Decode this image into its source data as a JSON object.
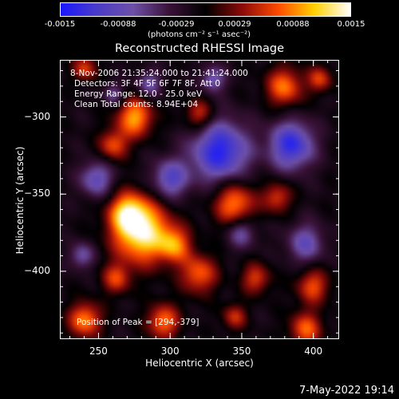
{
  "colorbar": {
    "ticks": [
      "-0.0015",
      "-0.00088",
      "-0.00029",
      "0.00029",
      "0.00088",
      "0.0015"
    ],
    "unit": "(photons cm⁻² s⁻¹ asec⁻²)",
    "colors": [
      "#1a18ff",
      "#4a3cc8",
      "#6e50a8",
      "#3a1238",
      "#000000",
      "#8a0a0a",
      "#ff4a00",
      "#ffd000",
      "#ffffff"
    ]
  },
  "title": "Reconstructed RHESSI Image",
  "info": {
    "time_range": "8-Nov-2006 21:35:24.000 to 21:41:24.000",
    "detectors": "Detectors: 3F 4F 5F 6F 7F 8F, Att 0",
    "energy": "Energy Range: 12.0 - 25.0 keV",
    "clean": "Clean     Total counts: 8.94E+04",
    "peak": "Position of Peak = [294,-379]"
  },
  "footer": "7-May-2022 19:14",
  "chart_data": {
    "type": "heatmap",
    "title": "Reconstructed RHESSI Image",
    "xlabel": "Heliocentric X (arcsec)",
    "ylabel": "Heliocentric Y (arcsec)",
    "xlim": [
      223,
      418
    ],
    "ylim": [
      -444,
      -263
    ],
    "x_ticks": [
      250,
      300,
      350,
      400
    ],
    "y_ticks": [
      -300,
      -350,
      -400
    ],
    "x_tick_labels": [
      "250",
      "300",
      "350",
      "400"
    ],
    "y_tick_labels": [
      "−300",
      "−350",
      "−400"
    ],
    "value_range": [
      -0.0015,
      0.0015
    ],
    "peak_position": [
      294,
      -379
    ],
    "grid": false,
    "sources": [
      {
        "x": 280,
        "y": -375,
        "s": 14,
        "a": 1.0
      },
      {
        "x": 270,
        "y": -362,
        "s": 9,
        "a": 0.7
      },
      {
        "x": 303,
        "y": -383,
        "s": 8,
        "a": 0.6
      },
      {
        "x": 262,
        "y": -405,
        "s": 7,
        "a": 0.5
      },
      {
        "x": 275,
        "y": -300,
        "s": 9,
        "a": 0.75
      },
      {
        "x": 260,
        "y": -318,
        "s": 7,
        "a": 0.55
      },
      {
        "x": 320,
        "y": -298,
        "s": 7,
        "a": 0.5
      },
      {
        "x": 380,
        "y": -280,
        "s": 9,
        "a": 0.65
      },
      {
        "x": 405,
        "y": -275,
        "s": 6,
        "a": 0.5
      },
      {
        "x": 345,
        "y": -356,
        "s": 10,
        "a": 0.7
      },
      {
        "x": 375,
        "y": -352,
        "s": 7,
        "a": 0.5
      },
      {
        "x": 320,
        "y": -402,
        "s": 9,
        "a": 0.6
      },
      {
        "x": 360,
        "y": -405,
        "s": 7,
        "a": 0.5
      },
      {
        "x": 400,
        "y": -410,
        "s": 8,
        "a": 0.55
      },
      {
        "x": 240,
        "y": -432,
        "s": 8,
        "a": 0.7
      },
      {
        "x": 295,
        "y": -433,
        "s": 8,
        "a": 0.65
      },
      {
        "x": 395,
        "y": -438,
        "s": 8,
        "a": 0.6
      },
      {
        "x": 345,
        "y": -430,
        "s": 6,
        "a": 0.45
      },
      {
        "x": 240,
        "y": -268,
        "s": 6,
        "a": 0.5
      },
      {
        "x": 335,
        "y": -322,
        "s": 14,
        "a": -0.85
      },
      {
        "x": 385,
        "y": -318,
        "s": 11,
        "a": -0.8
      },
      {
        "x": 248,
        "y": -340,
        "s": 8,
        "a": -0.55
      },
      {
        "x": 300,
        "y": -340,
        "s": 9,
        "a": -0.6
      },
      {
        "x": 395,
        "y": -382,
        "s": 9,
        "a": -0.5
      },
      {
        "x": 350,
        "y": -375,
        "s": 7,
        "a": -0.45
      },
      {
        "x": 330,
        "y": -275,
        "s": 6,
        "a": -0.5
      },
      {
        "x": 285,
        "y": -278,
        "s": 6,
        "a": -0.45
      },
      {
        "x": 238,
        "y": -390,
        "s": 6,
        "a": -0.45
      },
      {
        "x": 260,
        "y": -285,
        "s": 5,
        "a": -0.4
      }
    ]
  }
}
